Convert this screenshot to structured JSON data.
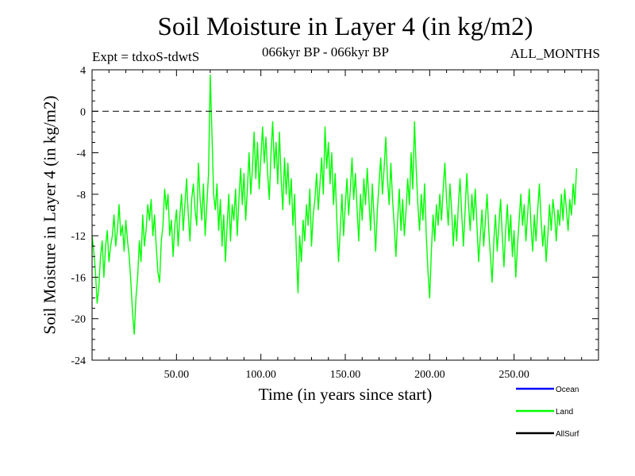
{
  "chart_data": {
    "type": "line",
    "title": "Soil Moisture in Layer 4 (in kg/m2)",
    "subtitle_left": "Expt = tdxoS-tdwtS",
    "subtitle_center": "066kyr BP - 066kyr BP",
    "subtitle_right": "ALL_MONTHS",
    "xlabel": "Time (in years since start)",
    "ylabel": "Soil Moisture in Layer 4 (in kg/m2)",
    "xlim": [
      0,
      300
    ],
    "ylim": [
      -24,
      4
    ],
    "x_ticks": [
      50,
      100,
      150,
      200,
      250
    ],
    "x_tick_labels": [
      "50.00",
      "100.00",
      "150.00",
      "200.00",
      "250.00"
    ],
    "y_ticks": [
      4,
      0,
      -4,
      -8,
      -12,
      -16,
      -20,
      -24
    ],
    "y_tick_labels": [
      "4",
      "0",
      "-4",
      "-8",
      "-12",
      "-16",
      "-20",
      "-24"
    ],
    "reference_line": {
      "y": 0,
      "style": "dashed"
    },
    "series": [
      {
        "name": "Land",
        "color": "#00ff00",
        "x_start": 0,
        "x_step": 1,
        "values": [
          -12.0,
          -13.5,
          -15.5,
          -18.5,
          -17.0,
          -14.0,
          -12.5,
          -16.0,
          -13.0,
          -11.5,
          -14.5,
          -13.0,
          -12.0,
          -10.0,
          -13.0,
          -11.5,
          -9.0,
          -12.0,
          -11.0,
          -13.5,
          -10.5,
          -12.5,
          -14.0,
          -16.5,
          -19.5,
          -21.5,
          -18.0,
          -16.0,
          -12.5,
          -14.5,
          -10.0,
          -13.0,
          -11.5,
          -9.0,
          -10.5,
          -8.5,
          -12.0,
          -10.0,
          -13.0,
          -15.5,
          -16.5,
          -12.5,
          -11.0,
          -7.5,
          -9.5,
          -8.0,
          -12.0,
          -10.5,
          -14.0,
          -11.0,
          -9.5,
          -13.0,
          -10.0,
          -8.0,
          -11.5,
          -9.0,
          -6.5,
          -10.0,
          -12.5,
          -8.5,
          -7.0,
          -9.5,
          -11.0,
          -5.0,
          -8.5,
          -10.5,
          -7.0,
          -12.0,
          -9.0,
          -6.0,
          3.5,
          -2.0,
          -8.0,
          -9.5,
          -7.0,
          -11.5,
          -8.5,
          -13.0,
          -10.0,
          -14.5,
          -11.0,
          -8.0,
          -12.5,
          -9.0,
          -10.5,
          -7.5,
          -12.0,
          -8.5,
          -5.5,
          -9.0,
          -6.0,
          -10.5,
          -7.5,
          -4.0,
          -8.0,
          -5.5,
          -2.0,
          -6.5,
          -3.0,
          -7.5,
          -4.5,
          -1.5,
          -5.0,
          -2.5,
          -6.0,
          -8.5,
          -4.0,
          -1.0,
          -5.5,
          -3.0,
          -7.0,
          -2.0,
          -6.5,
          -9.5,
          -4.5,
          -8.0,
          -5.0,
          -9.0,
          -6.5,
          -11.0,
          -8.0,
          -13.5,
          -17.5,
          -12.0,
          -14.5,
          -10.5,
          -12.5,
          -9.0,
          -11.0,
          -7.5,
          -13.0,
          -10.0,
          -8.5,
          -6.0,
          -9.5,
          -7.0,
          -4.5,
          -8.0,
          -1.5,
          -5.5,
          -3.0,
          -7.0,
          -4.0,
          -9.0,
          -6.0,
          -10.5,
          -14.5,
          -11.5,
          -8.0,
          -12.0,
          -9.0,
          -6.5,
          -10.0,
          -7.5,
          -4.5,
          -8.5,
          -6.0,
          -9.5,
          -12.5,
          -8.0,
          -10.5,
          -6.5,
          -9.0,
          -5.5,
          -8.5,
          -11.5,
          -7.0,
          -10.0,
          -13.5,
          -9.5,
          -7.0,
          -4.5,
          -8.0,
          -5.5,
          -2.5,
          -6.5,
          -9.0,
          -5.0,
          -8.5,
          -11.0,
          -14.0,
          -10.5,
          -7.5,
          -11.5,
          -8.5,
          -12.0,
          -9.5,
          -6.5,
          -9.0,
          -4.0,
          -7.5,
          -1.0,
          -5.5,
          -9.0,
          -11.5,
          -8.0,
          -10.5,
          -7.0,
          -12.0,
          -15.5,
          -18.0,
          -13.5,
          -10.0,
          -12.5,
          -9.0,
          -11.0,
          -8.0,
          -10.5,
          -7.5,
          -5.0,
          -8.5,
          -11.0,
          -7.0,
          -9.5,
          -13.0,
          -10.0,
          -12.5,
          -9.0,
          -6.5,
          -10.0,
          -13.0,
          -9.5,
          -6.0,
          -9.0,
          -11.5,
          -8.0,
          -10.5,
          -7.5,
          -11.0,
          -14.5,
          -12.0,
          -9.5,
          -13.0,
          -10.5,
          -8.0,
          -11.5,
          -14.0,
          -16.5,
          -12.5,
          -10.0,
          -13.5,
          -11.0,
          -8.5,
          -12.0,
          -15.0,
          -11.5,
          -9.0,
          -12.5,
          -10.0,
          -14.0,
          -11.5,
          -16.0,
          -13.0,
          -10.5,
          -8.0,
          -11.0,
          -9.0,
          -12.5,
          -10.0,
          -7.5,
          -11.0,
          -13.5,
          -10.0,
          -12.5,
          -9.5,
          -7.0,
          -10.5,
          -13.0,
          -11.0,
          -14.5,
          -12.0,
          -9.0,
          -11.5,
          -8.5,
          -10.0,
          -12.5,
          -9.5,
          -11.0,
          -8.0,
          -10.5,
          -7.5,
          -9.5,
          -11.5,
          -8.5,
          -10.0,
          -7.0,
          -9.0,
          -5.5
        ]
      },
      {
        "name": "Ocean",
        "color": "#0000ff",
        "values": []
      },
      {
        "name": "AllSurf",
        "color": "#000000",
        "values": []
      }
    ],
    "legend": [
      {
        "label": "Ocean",
        "color": "#0000ff"
      },
      {
        "label": "Land",
        "color": "#00ff00"
      },
      {
        "label": "AllSurf",
        "color": "#000000"
      }
    ]
  }
}
